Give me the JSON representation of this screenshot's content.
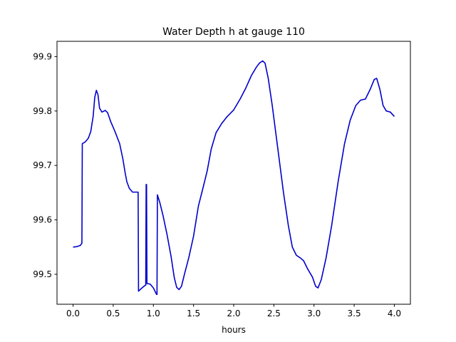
{
  "chart_data": {
    "type": "line",
    "title": "Water Depth h at gauge 110",
    "xlabel": "hours",
    "ylabel": "",
    "xlim": [
      -0.2,
      4.2
    ],
    "ylim": [
      99.445,
      99.928
    ],
    "x_ticks": [
      0.0,
      0.5,
      1.0,
      1.5,
      2.0,
      2.5,
      3.0,
      3.5,
      4.0
    ],
    "x_tick_labels": [
      "0.0",
      "0.5",
      "1.0",
      "1.5",
      "2.0",
      "2.5",
      "3.0",
      "3.5",
      "4.0"
    ],
    "y_ticks": [
      99.5,
      99.6,
      99.7,
      99.8,
      99.9
    ],
    "y_tick_labels": [
      "99.5",
      "99.6",
      "99.7",
      "99.8",
      "99.9"
    ],
    "grid": false,
    "legend": "none",
    "series": [
      {
        "color": "#0000cc",
        "points": [
          [
            0.0,
            99.55
          ],
          [
            0.05,
            99.551
          ],
          [
            0.09,
            99.553
          ],
          [
            0.11,
            99.557
          ],
          [
            0.115,
            99.74
          ],
          [
            0.15,
            99.743
          ],
          [
            0.19,
            99.75
          ],
          [
            0.22,
            99.762
          ],
          [
            0.25,
            99.79
          ],
          [
            0.27,
            99.825
          ],
          [
            0.29,
            99.838
          ],
          [
            0.31,
            99.83
          ],
          [
            0.33,
            99.805
          ],
          [
            0.36,
            99.798
          ],
          [
            0.4,
            99.801
          ],
          [
            0.43,
            99.797
          ],
          [
            0.47,
            99.78
          ],
          [
            0.52,
            99.763
          ],
          [
            0.58,
            99.74
          ],
          [
            0.62,
            99.712
          ],
          [
            0.65,
            99.685
          ],
          [
            0.67,
            99.67
          ],
          [
            0.7,
            99.658
          ],
          [
            0.74,
            99.651
          ],
          [
            0.8,
            99.651
          ],
          [
            0.81,
            99.651
          ],
          [
            0.815,
            99.469
          ],
          [
            0.85,
            99.474
          ],
          [
            0.9,
            99.48
          ],
          [
            0.905,
            99.48
          ],
          [
            0.91,
            99.665
          ],
          [
            0.915,
            99.665
          ],
          [
            0.92,
            99.483
          ],
          [
            0.96,
            99.482
          ],
          [
            1.0,
            99.475
          ],
          [
            1.04,
            99.463
          ],
          [
            1.045,
            99.463
          ],
          [
            1.05,
            99.646
          ],
          [
            1.08,
            99.632
          ],
          [
            1.12,
            99.608
          ],
          [
            1.17,
            99.573
          ],
          [
            1.22,
            99.533
          ],
          [
            1.26,
            99.494
          ],
          [
            1.29,
            99.476
          ],
          [
            1.32,
            99.472
          ],
          [
            1.35,
            99.478
          ],
          [
            1.39,
            99.502
          ],
          [
            1.44,
            99.53
          ],
          [
            1.5,
            99.57
          ],
          [
            1.56,
            99.625
          ],
          [
            1.62,
            99.66
          ],
          [
            1.67,
            99.69
          ],
          [
            1.72,
            99.73
          ],
          [
            1.78,
            99.76
          ],
          [
            1.85,
            99.777
          ],
          [
            1.92,
            99.79
          ],
          [
            2.0,
            99.802
          ],
          [
            2.08,
            99.822
          ],
          [
            2.15,
            99.842
          ],
          [
            2.22,
            99.865
          ],
          [
            2.28,
            99.88
          ],
          [
            2.32,
            99.888
          ],
          [
            2.36,
            99.892
          ],
          [
            2.39,
            99.888
          ],
          [
            2.43,
            99.86
          ],
          [
            2.48,
            99.81
          ],
          [
            2.55,
            99.73
          ],
          [
            2.62,
            99.65
          ],
          [
            2.68,
            99.59
          ],
          [
            2.73,
            99.55
          ],
          [
            2.78,
            99.535
          ],
          [
            2.83,
            99.53
          ],
          [
            2.87,
            99.525
          ],
          [
            2.92,
            99.51
          ],
          [
            2.98,
            99.495
          ],
          [
            3.02,
            99.478
          ],
          [
            3.05,
            99.475
          ],
          [
            3.09,
            99.49
          ],
          [
            3.15,
            99.53
          ],
          [
            3.22,
            99.59
          ],
          [
            3.3,
            99.67
          ],
          [
            3.38,
            99.74
          ],
          [
            3.45,
            99.783
          ],
          [
            3.52,
            99.81
          ],
          [
            3.58,
            99.82
          ],
          [
            3.64,
            99.822
          ],
          [
            3.7,
            99.84
          ],
          [
            3.75,
            99.858
          ],
          [
            3.78,
            99.86
          ],
          [
            3.82,
            99.84
          ],
          [
            3.86,
            99.81
          ],
          [
            3.9,
            99.8
          ],
          [
            3.95,
            99.798
          ],
          [
            4.0,
            99.79
          ]
        ]
      }
    ]
  }
}
